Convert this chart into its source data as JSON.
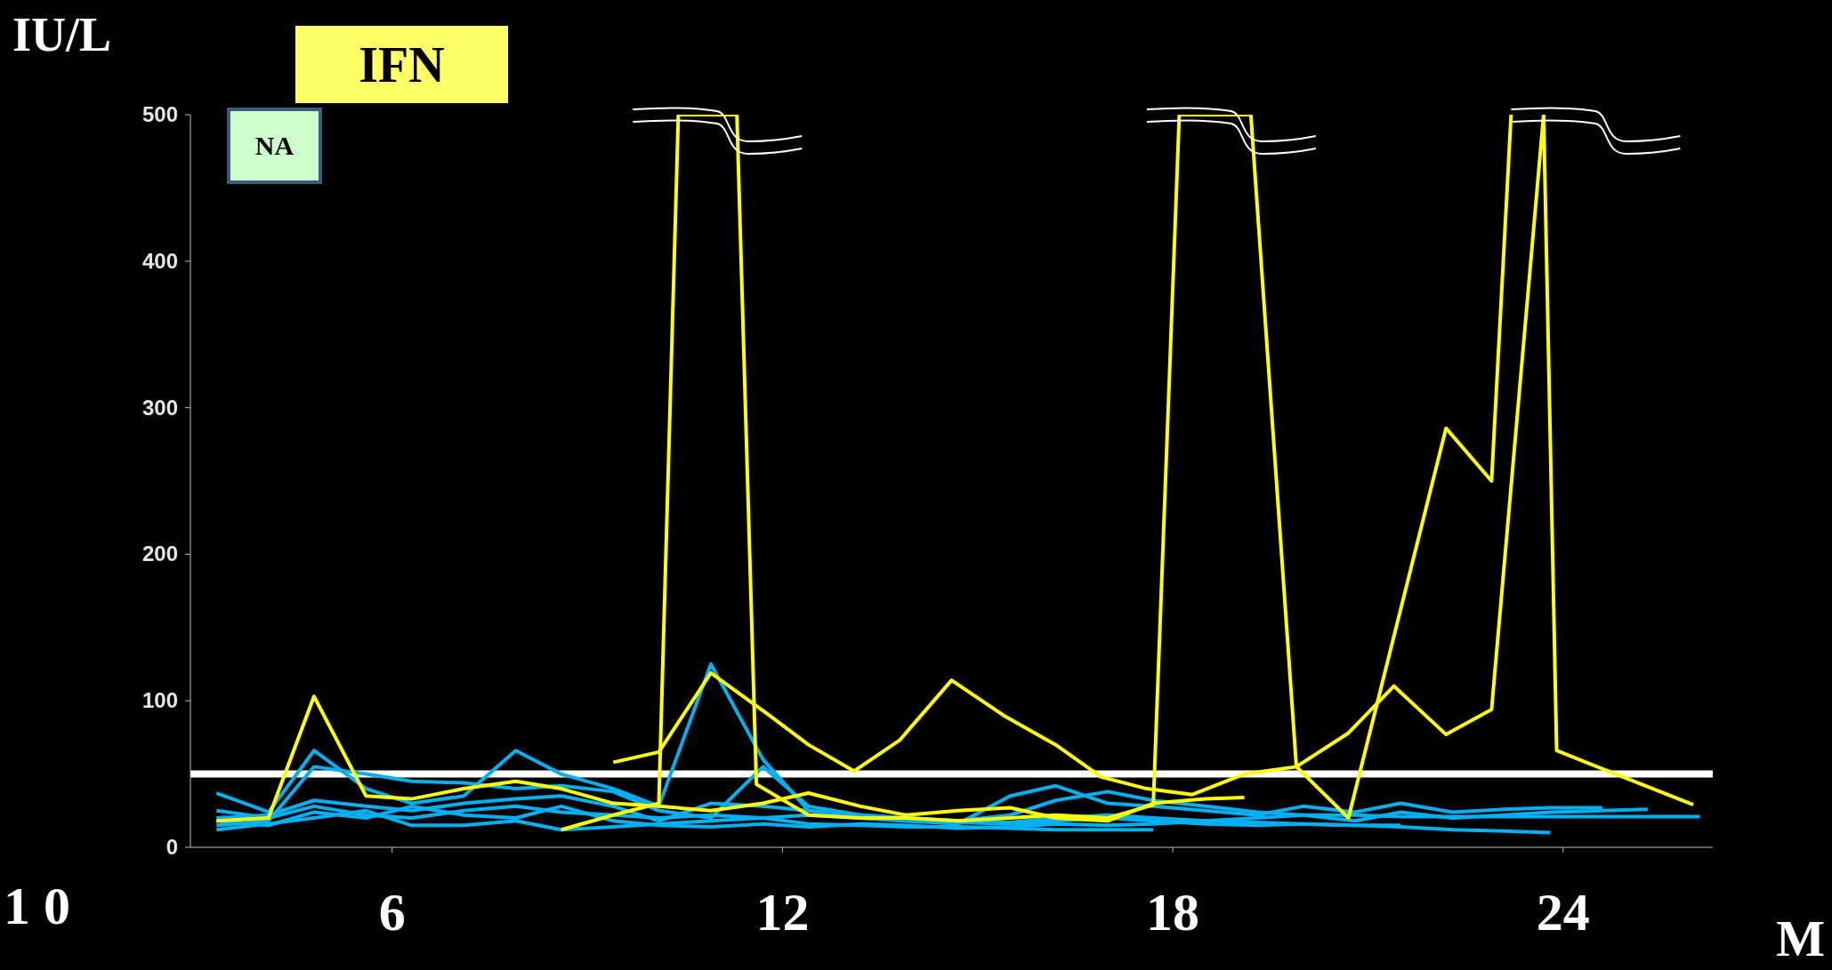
{
  "chart_data": {
    "type": "line",
    "title": "IFN",
    "ylabel": "IU/L",
    "xlabel": "M",
    "annotations": [
      "NA",
      "1 0"
    ],
    "xlim": [
      2.9,
      26.3
    ],
    "xticks": [
      6,
      12,
      18,
      24
    ],
    "ylim": [
      0,
      500
    ],
    "yticks": [
      0,
      100,
      200,
      300,
      400,
      500
    ],
    "grid": false,
    "legend": false,
    "marker": "none",
    "line_style": "solid",
    "ref_lines": [
      {
        "axis": "y",
        "value": 50,
        "color": "#ffffff"
      }
    ],
    "series": [
      {
        "color": "#00b0f0",
        "x": [
          3.3,
          4.1,
          4.8,
          5.6,
          6.3,
          7.1,
          7.9,
          8.6,
          9.4,
          10.1,
          10.9,
          11.7,
          12.4,
          13.2,
          13.9,
          14.7,
          15.5,
          16.2,
          17.0,
          17.7,
          18.5,
          19.3,
          20.0,
          20.8,
          21.5,
          22.3,
          23.1,
          23.8,
          24.6
        ],
        "values": [
          37,
          24,
          66,
          40,
          30,
          35,
          66,
          50,
          40,
          28,
          125,
          60,
          25,
          20,
          18,
          16,
          35,
          42,
          30,
          28,
          25,
          22,
          28,
          24,
          30,
          24,
          26,
          27,
          27
        ]
      },
      {
        "color": "#00b0f0",
        "x": [
          3.3,
          4.1,
          4.8,
          5.6,
          6.3,
          7.1,
          7.9,
          8.6,
          9.4,
          10.1,
          10.9,
          11.7,
          12.4,
          13.2,
          13.9,
          14.7,
          15.5,
          16.2,
          17.0,
          17.7,
          18.5,
          19.3,
          20.0,
          20.8,
          21.5,
          22.3,
          23.1,
          23.8,
          24.6,
          25.3
        ],
        "values": [
          15,
          18,
          55,
          50,
          45,
          44,
          40,
          42,
          38,
          25,
          20,
          55,
          28,
          22,
          20,
          18,
          22,
          32,
          38,
          32,
          28,
          24,
          22,
          18,
          24,
          20,
          22,
          24,
          25,
          26
        ]
      },
      {
        "color": "#00b0f0",
        "x": [
          3.3,
          4.1,
          4.8,
          5.6,
          6.3,
          7.1,
          7.9,
          8.6,
          9.4,
          10.1,
          10.9,
          11.7,
          12.4,
          13.2,
          13.9,
          14.7,
          15.5,
          16.2,
          17.0,
          17.7,
          18.5,
          19.3,
          20.0,
          20.8,
          21.5,
          22.3,
          23.1,
          23.8
        ],
        "values": [
          20,
          22,
          32,
          28,
          25,
          30,
          33,
          35,
          28,
          18,
          30,
          28,
          25,
          22,
          20,
          18,
          17,
          20,
          22,
          20,
          18,
          17,
          16,
          15,
          14,
          12,
          11,
          10
        ]
      },
      {
        "color": "#00b0f0",
        "x": [
          3.3,
          4.1,
          4.8,
          5.6,
          6.3,
          7.1,
          7.9,
          8.6,
          9.4,
          10.1,
          10.9,
          11.7,
          12.4,
          13.2,
          13.9,
          14.7,
          15.5,
          16.2,
          17.0,
          17.7
        ],
        "values": [
          12,
          16,
          20,
          25,
          15,
          15,
          18,
          12,
          14,
          16,
          18,
          20,
          16,
          15,
          14,
          14,
          13,
          12,
          12,
          12
        ]
      },
      {
        "color": "#00b0f0",
        "x": [
          3.3,
          4.1,
          4.8,
          5.6,
          6.3,
          7.1,
          7.9,
          8.6,
          9.4,
          10.1,
          10.9,
          11.7,
          12.4,
          13.2,
          13.9,
          14.7,
          15.5,
          16.2,
          17.0,
          17.7,
          18.5,
          19.3,
          20.0,
          20.8,
          21.5
        ],
        "values": [
          25,
          20,
          28,
          22,
          20,
          25,
          28,
          24,
          22,
          20,
          22,
          20,
          22,
          20,
          18,
          17,
          16,
          18,
          20,
          18,
          16,
          15,
          16,
          15,
          15
        ]
      },
      {
        "color": "#00b0f0",
        "x": [
          3.3,
          4.1,
          4.8,
          5.6,
          6.3,
          7.1,
          7.9,
          8.6,
          9.4,
          10.1,
          10.9,
          11.7,
          12.4,
          13.2,
          13.9,
          14.7,
          15.5,
          16.2,
          17.0,
          17.7,
          18.5,
          19.3,
          20.0,
          20.8,
          21.5,
          22.3,
          23.1,
          23.8,
          24.6,
          25.3,
          26.1
        ],
        "values": [
          18,
          15,
          24,
          20,
          28,
          22,
          20,
          28,
          18,
          15,
          14,
          16,
          14,
          16,
          15,
          13,
          14,
          16,
          15,
          16,
          18,
          20,
          22,
          22,
          21,
          21,
          21,
          21,
          21,
          21,
          21
        ]
      },
      {
        "color": "#ffff00",
        "x": [
          3.3,
          4.1,
          4.8,
          5.6,
          6.3,
          7.1,
          7.9,
          8.6,
          9.4,
          10.1,
          10.9,
          11.7,
          12.4,
          13.2,
          13.9,
          14.7,
          15.5,
          16.2,
          17.0,
          17.7,
          18.5,
          19.1
        ],
        "values": [
          18,
          20,
          103,
          35,
          33,
          40,
          45,
          40,
          30,
          28,
          25,
          30,
          37,
          28,
          22,
          25,
          27,
          20,
          18,
          30,
          33,
          34
        ]
      },
      {
        "color": "#ffff00",
        "x": [
          8.6,
          9.4,
          10.1,
          10.4,
          11.3,
          11.6,
          12.4,
          13.2,
          13.9,
          14.7,
          15.5,
          16.2,
          17.0,
          17.7,
          18.1,
          19.2,
          19.9,
          20.7,
          22.2,
          22.9,
          23.2
        ],
        "values": [
          12,
          22,
          30,
          500,
          500,
          43,
          22,
          20,
          20,
          18,
          20,
          22,
          20,
          29,
          500,
          500,
          55,
          20,
          286,
          250,
          500
        ]
      },
      {
        "color": "#ffff00",
        "x": [
          9.4,
          10.1,
          10.9,
          11.8,
          12.4,
          13.1,
          13.8,
          14.6,
          15.4,
          16.2,
          16.9,
          17.6,
          18.3,
          19.1,
          19.9,
          20.7,
          21.4,
          22.2,
          22.9,
          23.7,
          23.9,
          26.0
        ],
        "values": [
          58,
          65,
          119,
          90,
          70,
          52,
          73,
          114,
          90,
          70,
          48,
          40,
          36,
          50,
          55,
          78,
          110,
          77,
          94,
          500,
          66,
          29
        ]
      }
    ]
  }
}
